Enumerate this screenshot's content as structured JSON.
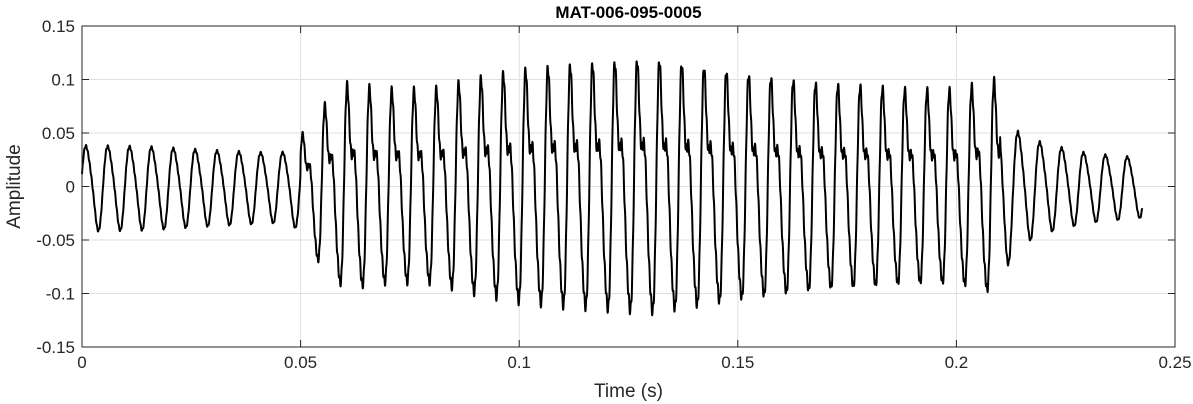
{
  "chart_data": {
    "type": "line",
    "title": "MAT-006-095-0005",
    "xlabel": "Time (s)",
    "ylabel": "Amplitude",
    "xlim": [
      0,
      0.25
    ],
    "ylim": [
      -0.15,
      0.15
    ],
    "grid": true,
    "x_ticks": [
      0,
      0.05,
      0.1,
      0.15,
      0.2,
      0.25
    ],
    "x_tick_labels": [
      "0",
      "0.05",
      "0.1",
      "0.15",
      "0.2",
      "0.25"
    ],
    "y_ticks": [
      -0.15,
      -0.1,
      -0.05,
      0,
      0.05,
      0.1,
      0.15
    ],
    "y_tick_labels": [
      "-0.15",
      "-0.1",
      "-0.05",
      "0",
      "0.05",
      "0.1",
      "0.15"
    ],
    "series": [
      {
        "color": "#000000",
        "duration": 0.2425,
        "segments": [
          {
            "t_end": 0.05,
            "freq": 200
          },
          {
            "t_end": 0.21,
            "freq": 196
          },
          {
            "t_end": 0.2425,
            "freq": 200
          }
        ],
        "envelope": [
          [
            0.0,
            0.043
          ],
          [
            0.015,
            0.042
          ],
          [
            0.03,
            0.038
          ],
          [
            0.045,
            0.035
          ],
          [
            0.049,
            0.04
          ],
          [
            0.053,
            0.065
          ],
          [
            0.06,
            0.095
          ],
          [
            0.07,
            0.09
          ],
          [
            0.08,
            0.09
          ],
          [
            0.09,
            0.1
          ],
          [
            0.1,
            0.108
          ],
          [
            0.11,
            0.112
          ],
          [
            0.12,
            0.115
          ],
          [
            0.13,
            0.118
          ],
          [
            0.14,
            0.112
          ],
          [
            0.15,
            0.105
          ],
          [
            0.16,
            0.1
          ],
          [
            0.17,
            0.095
          ],
          [
            0.18,
            0.093
          ],
          [
            0.19,
            0.09
          ],
          [
            0.2,
            0.09
          ],
          [
            0.21,
            0.1
          ],
          [
            0.213,
            0.06
          ],
          [
            0.22,
            0.045
          ],
          [
            0.23,
            0.035
          ],
          [
            0.2425,
            0.03
          ]
        ]
      }
    ]
  }
}
